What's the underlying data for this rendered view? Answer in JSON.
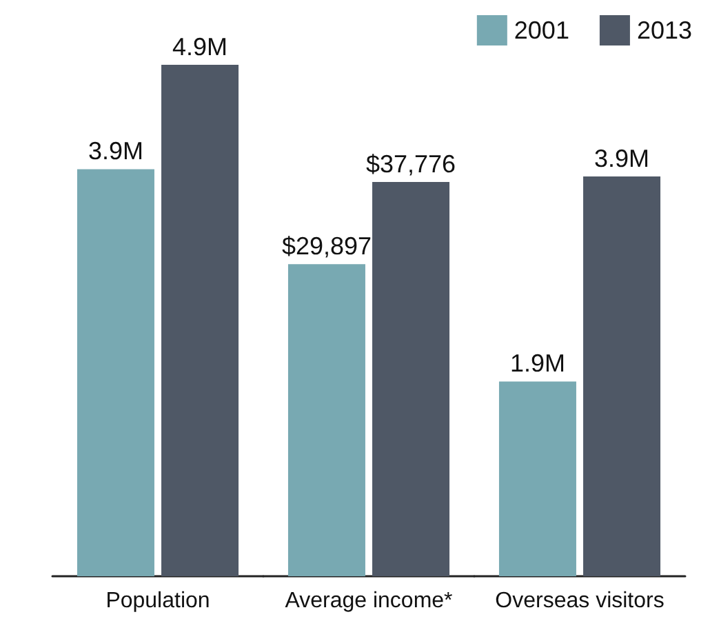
{
  "chart_data": [
    {
      "type": "bar",
      "categories": [
        "Population"
      ],
      "tick_labels": "x",
      "series": [
        {
          "color": "#78a9b2",
          "values": [
            3.9
          ],
          "value_labels": [
            "3.9M"
          ]
        },
        {
          "color": "#4f5866",
          "values": [
            4.9
          ],
          "value_labels": [
            "4.9M"
          ]
        }
      ]
    },
    {
      "type": "bar",
      "categories": [
        "Average income*"
      ],
      "tick_labels": "x",
      "series": [
        {
          "color": "#78a9b2",
          "values": [
            29897
          ],
          "value_labels": [
            "$29,897"
          ]
        },
        {
          "color": "#4f5866",
          "values": [
            37776
          ],
          "value_labels": [
            "$37,776"
          ]
        }
      ]
    },
    {
      "type": "bar",
      "categories": [
        "Overseas visitors"
      ],
      "tick_labels": "x",
      "series": [
        {
          "name": "2001",
          "color": "#78a9b2",
          "values": [
            1.9
          ],
          "value_labels": [
            "1.9M"
          ]
        },
        {
          "name": "2013",
          "color": "#4f5866",
          "values": [
            3.9
          ],
          "value_labels": [
            "3.9M"
          ]
        }
      ],
      "legend": "top right"
    }
  ]
}
